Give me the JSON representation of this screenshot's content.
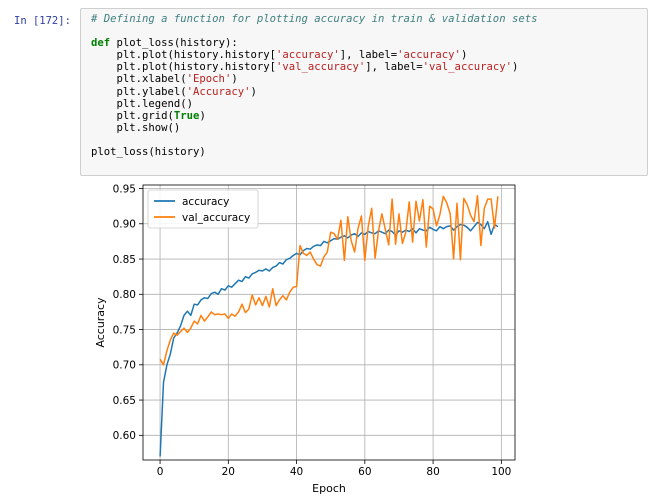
{
  "cell": {
    "prompt": "In [172]:",
    "code": {
      "comment": "# Defining a function for plotting accuracy in train & validation sets",
      "def_kw": "def",
      "def_rest": " plot_loss(history):",
      "l1a": "    plt.plot(history.history[",
      "l1s1": "'accuracy'",
      "l1b": "], label=",
      "l1s2": "'accuracy'",
      "l1c": ")",
      "l2a": "    plt.plot(history.history[",
      "l2s1": "'val_accuracy'",
      "l2b": "], label=",
      "l2s2": "'val_accuracy'",
      "l2c": ")",
      "l3a": "    plt.xlabel(",
      "l3s": "'Epoch'",
      "l3c": ")",
      "l4a": "    plt.ylabel(",
      "l4s": "'Accuracy'",
      "l4c": ")",
      "l5": "    plt.legend()",
      "l6a": "    plt.grid(",
      "l6k": "True",
      "l6c": ")",
      "l7": "    plt.show()",
      "call": "plot_loss(history)"
    }
  },
  "chart_data": {
    "type": "line",
    "xlabel": "Epoch",
    "ylabel": "Accuracy",
    "xlim": [
      -5,
      104
    ],
    "ylim": [
      0.565,
      0.955
    ],
    "xticks": [
      0,
      20,
      40,
      60,
      80,
      100
    ],
    "yticks": [
      0.6,
      0.65,
      0.7,
      0.75,
      0.8,
      0.85,
      0.9,
      0.95
    ],
    "grid": true,
    "legend_position": "top-left",
    "series": [
      {
        "name": "accuracy",
        "color": "#1f77b4",
        "x": [
          0,
          1,
          2,
          3,
          4,
          5,
          6,
          7,
          8,
          9,
          10,
          11,
          12,
          13,
          14,
          15,
          16,
          17,
          18,
          19,
          20,
          21,
          22,
          23,
          24,
          25,
          26,
          27,
          28,
          29,
          30,
          31,
          32,
          33,
          34,
          35,
          36,
          37,
          38,
          39,
          40,
          41,
          42,
          43,
          44,
          45,
          46,
          47,
          48,
          49,
          50,
          51,
          52,
          53,
          54,
          55,
          56,
          57,
          58,
          59,
          60,
          61,
          62,
          63,
          64,
          65,
          66,
          67,
          68,
          69,
          70,
          71,
          72,
          73,
          74,
          75,
          76,
          77,
          78,
          79,
          80,
          81,
          82,
          83,
          84,
          85,
          86,
          87,
          88,
          89,
          90,
          91,
          92,
          93,
          94,
          95,
          96,
          97,
          98,
          99
        ],
        "y": [
          0.57,
          0.675,
          0.7,
          0.715,
          0.738,
          0.745,
          0.755,
          0.77,
          0.776,
          0.77,
          0.786,
          0.785,
          0.792,
          0.795,
          0.794,
          0.801,
          0.803,
          0.8,
          0.808,
          0.806,
          0.812,
          0.81,
          0.815,
          0.82,
          0.818,
          0.825,
          0.823,
          0.829,
          0.831,
          0.834,
          0.833,
          0.836,
          0.833,
          0.838,
          0.84,
          0.845,
          0.843,
          0.849,
          0.851,
          0.855,
          0.858,
          0.856,
          0.862,
          0.865,
          0.864,
          0.868,
          0.87,
          0.869,
          0.875,
          0.873,
          0.876,
          0.879,
          0.878,
          0.881,
          0.883,
          0.88,
          0.884,
          0.886,
          0.882,
          0.887,
          0.885,
          0.889,
          0.887,
          0.886,
          0.89,
          0.888,
          0.886,
          0.891,
          0.889,
          0.884,
          0.89,
          0.888,
          0.891,
          0.889,
          0.893,
          0.887,
          0.893,
          0.891,
          0.89,
          0.895,
          0.892,
          0.89,
          0.896,
          0.893,
          0.896,
          0.897,
          0.891,
          0.896,
          0.899,
          0.898,
          0.895,
          0.89,
          0.896,
          0.902,
          0.899,
          0.893,
          0.903,
          0.885,
          0.899,
          0.896
        ]
      },
      {
        "name": "val_accuracy",
        "color": "#ff7f0e",
        "x": [
          0,
          1,
          2,
          3,
          4,
          5,
          6,
          7,
          8,
          9,
          10,
          11,
          12,
          13,
          14,
          15,
          16,
          17,
          18,
          19,
          20,
          21,
          22,
          23,
          24,
          25,
          26,
          27,
          28,
          29,
          30,
          31,
          32,
          33,
          34,
          35,
          36,
          37,
          38,
          39,
          40,
          41,
          42,
          43,
          44,
          45,
          46,
          47,
          48,
          49,
          50,
          51,
          52,
          53,
          54,
          55,
          56,
          57,
          58,
          59,
          60,
          61,
          62,
          63,
          64,
          65,
          66,
          67,
          68,
          69,
          70,
          71,
          72,
          73,
          74,
          75,
          76,
          77,
          78,
          79,
          80,
          81,
          82,
          83,
          84,
          85,
          86,
          87,
          88,
          89,
          90,
          91,
          92,
          93,
          94,
          95,
          96,
          97,
          98,
          99
        ],
        "y": [
          0.708,
          0.7,
          0.72,
          0.735,
          0.745,
          0.742,
          0.747,
          0.752,
          0.746,
          0.752,
          0.762,
          0.758,
          0.77,
          0.762,
          0.768,
          0.775,
          0.771,
          0.772,
          0.771,
          0.772,
          0.766,
          0.772,
          0.769,
          0.775,
          0.786,
          0.774,
          0.779,
          0.799,
          0.785,
          0.795,
          0.784,
          0.797,
          0.782,
          0.808,
          0.784,
          0.792,
          0.798,
          0.792,
          0.803,
          0.81,
          0.811,
          0.869,
          0.858,
          0.855,
          0.86,
          0.85,
          0.842,
          0.84,
          0.853,
          0.86,
          0.888,
          0.886,
          0.878,
          0.905,
          0.848,
          0.91,
          0.876,
          0.86,
          0.893,
          0.911,
          0.848,
          0.896,
          0.922,
          0.851,
          0.89,
          0.914,
          0.892,
          0.87,
          0.935,
          0.871,
          0.914,
          0.872,
          0.888,
          0.931,
          0.874,
          0.932,
          0.904,
          0.934,
          0.867,
          0.925,
          0.921,
          0.897,
          0.913,
          0.939,
          0.93,
          0.914,
          0.85,
          0.929,
          0.849,
          0.936,
          0.927,
          0.912,
          0.903,
          0.94,
          0.869,
          0.922,
          0.935,
          0.935,
          0.894,
          0.939
        ]
      }
    ]
  }
}
